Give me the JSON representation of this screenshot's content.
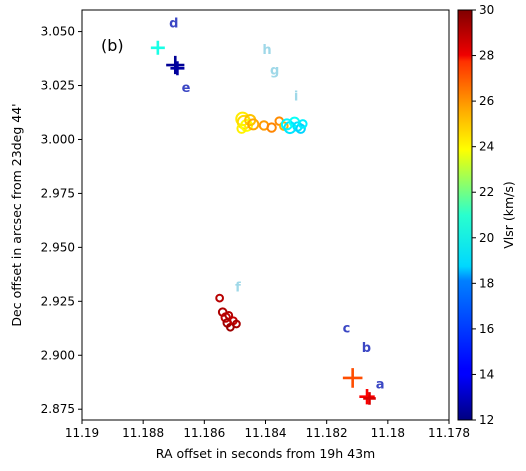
{
  "chart_data": {
    "type": "scatter",
    "panel_label": "(b)",
    "xlabel": "RA offset in seconds from 19h 43m",
    "ylabel": "Dec offset in arcsec from 23deg 44'",
    "xlim": [
      11.19,
      11.178
    ],
    "ylim": [
      2.87,
      3.06
    ],
    "x_ticks": [
      11.19,
      11.188,
      11.186,
      11.184,
      11.182,
      11.18,
      11.178
    ],
    "x_tick_labels": [
      "11.19",
      "11.188",
      "11.186",
      "11.184",
      "11.182",
      "11.18",
      "11.178"
    ],
    "y_ticks": [
      2.875,
      2.9,
      2.925,
      2.95,
      2.975,
      3.0,
      3.025,
      3.05
    ],
    "y_tick_labels": [
      "2.875",
      "2.900",
      "2.925",
      "2.950",
      "2.975",
      "3.000",
      "3.025",
      "3.050"
    ],
    "grid": false,
    "colorbar": {
      "label": "Vlsr (km/s)",
      "range": [
        12,
        30
      ],
      "ticks": [
        12,
        14,
        16,
        18,
        20,
        22,
        24,
        26,
        28,
        30
      ],
      "tick_labels": [
        "12",
        "14",
        "16",
        "18",
        "20",
        "22",
        "24",
        "26",
        "28",
        "30"
      ],
      "colormap": "jet"
    },
    "plus_markers": [
      {
        "x": 11.18752,
        "y": 3.0425,
        "v": 19.2,
        "size": 1.0
      },
      {
        "x": 11.18695,
        "y": 3.0345,
        "v": 12.4,
        "size": 1.3
      },
      {
        "x": 11.18688,
        "y": 3.033,
        "v": 12.6,
        "size": 1.0
      },
      {
        "x": 11.18115,
        "y": 2.8895,
        "v": 26.4,
        "size": 1.4
      },
      {
        "x": 11.18068,
        "y": 2.8808,
        "v": 27.8,
        "size": 1.1
      },
      {
        "x": 11.1806,
        "y": 2.88,
        "v": 28.4,
        "size": 0.9
      }
    ],
    "circle_markers": [
      {
        "x": 11.18475,
        "y": 3.0095,
        "v": 23.6,
        "size": 1.5
      },
      {
        "x": 11.1847,
        "y": 3.008,
        "v": 23.9,
        "size": 1.5
      },
      {
        "x": 11.18462,
        "y": 3.0065,
        "v": 23.2,
        "size": 1.3
      },
      {
        "x": 11.1845,
        "y": 3.009,
        "v": 24.3,
        "size": 1.2
      },
      {
        "x": 11.1844,
        "y": 3.007,
        "v": 24.8,
        "size": 1.2
      },
      {
        "x": 11.18478,
        "y": 3.005,
        "v": 23.5,
        "size": 1.0
      },
      {
        "x": 11.18405,
        "y": 3.0065,
        "v": 25.0,
        "size": 1.0
      },
      {
        "x": 11.1838,
        "y": 3.0055,
        "v": 25.4,
        "size": 1.0
      },
      {
        "x": 11.18355,
        "y": 3.0085,
        "v": 25.3,
        "size": 0.9
      },
      {
        "x": 11.1834,
        "y": 3.0062,
        "v": 24.6,
        "size": 0.9
      },
      {
        "x": 11.1833,
        "y": 3.007,
        "v": 18.6,
        "size": 1.2
      },
      {
        "x": 11.1832,
        "y": 3.0055,
        "v": 18.3,
        "size": 1.3
      },
      {
        "x": 11.18305,
        "y": 3.008,
        "v": 18.9,
        "size": 1.1
      },
      {
        "x": 11.18295,
        "y": 3.006,
        "v": 18.2,
        "size": 1.0
      },
      {
        "x": 11.18285,
        "y": 3.005,
        "v": 18.0,
        "size": 1.0
      },
      {
        "x": 11.18278,
        "y": 3.0072,
        "v": 18.5,
        "size": 0.9
      },
      {
        "x": 11.1855,
        "y": 2.9265,
        "v": 29.0,
        "size": 0.8
      },
      {
        "x": 11.1854,
        "y": 2.92,
        "v": 29.2,
        "size": 0.9
      },
      {
        "x": 11.1853,
        "y": 2.9175,
        "v": 28.9,
        "size": 1.0
      },
      {
        "x": 11.18525,
        "y": 2.915,
        "v": 29.4,
        "size": 0.9
      },
      {
        "x": 11.1852,
        "y": 2.9185,
        "v": 29.1,
        "size": 0.8
      },
      {
        "x": 11.18515,
        "y": 2.913,
        "v": 29.5,
        "size": 0.8
      },
      {
        "x": 11.18505,
        "y": 2.916,
        "v": 28.8,
        "size": 0.8
      },
      {
        "x": 11.18495,
        "y": 2.9145,
        "v": 29.3,
        "size": 0.8
      }
    ],
    "annotations": [
      {
        "text": "a",
        "x": 11.18025,
        "y": 2.8845,
        "color": "#3b47c4"
      },
      {
        "text": "b",
        "x": 11.1807,
        "y": 2.9015,
        "color": "#3b47c4"
      },
      {
        "text": "c",
        "x": 11.18135,
        "y": 2.9105,
        "color": "#3b47c4"
      },
      {
        "text": "d",
        "x": 11.187,
        "y": 3.052,
        "color": "#3b47c4"
      },
      {
        "text": "e",
        "x": 11.1866,
        "y": 3.022,
        "color": "#3b47c4"
      },
      {
        "text": "f",
        "x": 11.1849,
        "y": 2.9295,
        "color": "#9fd8e8"
      },
      {
        "text": "g",
        "x": 11.1837,
        "y": 3.03,
        "color": "#9fd8e8"
      },
      {
        "text": "h",
        "x": 11.18395,
        "y": 3.0395,
        "color": "#9fd8e8"
      },
      {
        "text": "i",
        "x": 11.183,
        "y": 3.018,
        "color": "#9fd8e8"
      }
    ]
  }
}
